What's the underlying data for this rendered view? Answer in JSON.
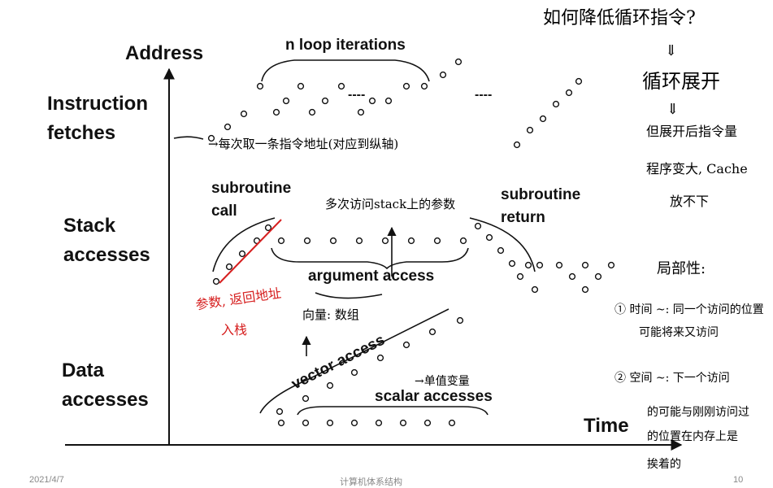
{
  "axes": {
    "y_label": "Address",
    "x_label": "Time"
  },
  "rows": {
    "instruction_fetches": "Instruction fetches",
    "stack_accesses": "Stack accesses",
    "data_accesses": "Data accesses"
  },
  "labels": {
    "loop": "n loop iterations",
    "call": "subroutine call",
    "return": "subroutine return",
    "argument": "argument access",
    "vector": "vector access",
    "scalar": "scalar accesses",
    "dashes": "----"
  },
  "handwritten": {
    "title_question": "如何降低循环指令?",
    "arrow_down": "⇓",
    "loop_unroll": "循环展开",
    "unroll_note_1": "但展开后指令量",
    "unroll_note_2": "程序变大, Cache",
    "unroll_note_3": "放不下",
    "fetch_note": "→每次取一条指令地址(对应到纵轴)",
    "stack_note": "多次访问stack上的参数",
    "push_note_1": "参数, 返回地址",
    "push_note_2": "入栈",
    "vector_note": "向量: 数组",
    "scalar_note": "→单值变量",
    "locality_title": "局部性:",
    "temporal_1": "① 时间 ~: 同一个访问的位置",
    "temporal_2": "可能将来又访问",
    "spatial_1": "② 空间 ~: 下一个访问",
    "spatial_2": "的可能与刚刚访问过",
    "spatial_3": "的位置在内存上是",
    "spatial_4": "挨着的"
  },
  "colors": {
    "ink": "#111111",
    "red_ink": "#d61f1f",
    "dot_fill": "#ffffff"
  },
  "footer": {
    "date": "2021/4/7",
    "course": "计算机体系结构",
    "page": "10"
  }
}
